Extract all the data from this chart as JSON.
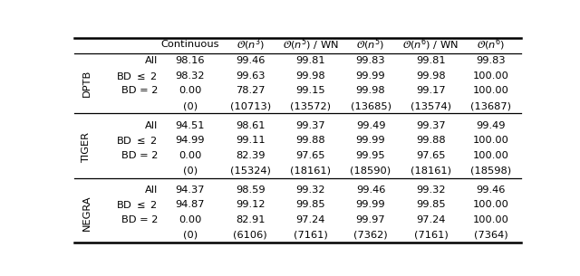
{
  "col_headers": [
    "Continuous",
    "O(n^3)",
    "O(n^5) / WN",
    "O(n^5)",
    "O(n^6) / WN",
    "O(n^6)"
  ],
  "row_groups": [
    {
      "label": "DPTB",
      "rows": [
        {
          "sub": "All",
          "vals": [
            "98.16",
            "99.46",
            "99.81",
            "99.83",
            "99.81",
            "99.83"
          ]
        },
        {
          "sub": "BD <= 2",
          "vals": [
            "98.32",
            "99.63",
            "99.98",
            "99.99",
            "99.98",
            "100.00"
          ]
        },
        {
          "sub": "BD = 2",
          "vals": [
            "0.00",
            "78.27",
            "99.15",
            "99.98",
            "99.17",
            "100.00"
          ]
        },
        {
          "sub": "",
          "vals": [
            "(0)",
            "(10713)",
            "(13572)",
            "(13685)",
            "(13574)",
            "(13687)"
          ]
        }
      ]
    },
    {
      "label": "TIGER",
      "rows": [
        {
          "sub": "All",
          "vals": [
            "94.51",
            "98.61",
            "99.37",
            "99.49",
            "99.37",
            "99.49"
          ]
        },
        {
          "sub": "BD <= 2",
          "vals": [
            "94.99",
            "99.11",
            "99.88",
            "99.99",
            "99.88",
            "100.00"
          ]
        },
        {
          "sub": "BD = 2",
          "vals": [
            "0.00",
            "82.39",
            "97.65",
            "99.95",
            "97.65",
            "100.00"
          ]
        },
        {
          "sub": "",
          "vals": [
            "(0)",
            "(15324)",
            "(18161)",
            "(18590)",
            "(18161)",
            "(18598)"
          ]
        }
      ]
    },
    {
      "label": "NEGRA",
      "rows": [
        {
          "sub": "All",
          "vals": [
            "94.37",
            "98.59",
            "99.32",
            "99.46",
            "99.32",
            "99.46"
          ]
        },
        {
          "sub": "BD <= 2",
          "vals": [
            "94.87",
            "99.12",
            "99.85",
            "99.99",
            "99.85",
            "100.00"
          ]
        },
        {
          "sub": "BD = 2",
          "vals": [
            "0.00",
            "82.91",
            "97.24",
            "99.97",
            "97.24",
            "100.00"
          ]
        },
        {
          "sub": "",
          "vals": [
            "(0)",
            "(6106)",
            "(7161)",
            "(7362)",
            "(7161)",
            "(7364)"
          ]
        }
      ]
    }
  ],
  "bg_color": "#ffffff",
  "text_color": "#000000",
  "fontsize": 8.2,
  "group_label_fontsize": 8.2
}
